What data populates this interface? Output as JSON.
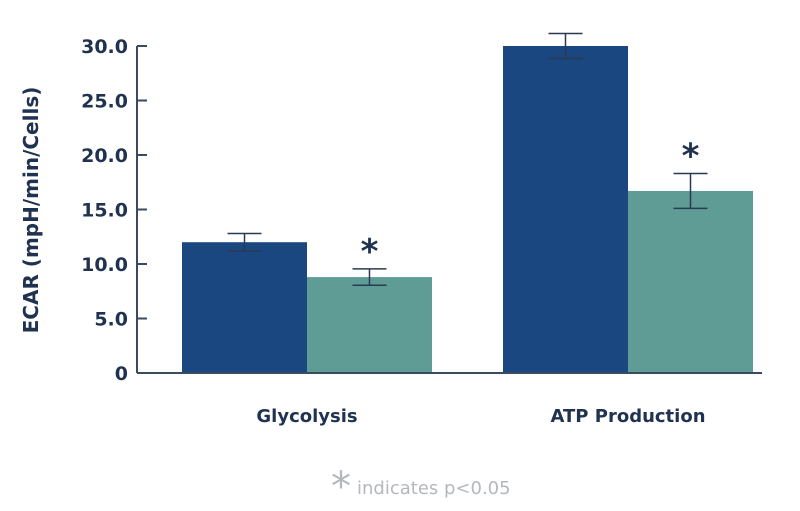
{
  "chart_data": {
    "type": "bar",
    "title": "",
    "xlabel": "",
    "ylabel": "ECAR (mpH/min/Cells)",
    "ylim": [
      0,
      30
    ],
    "yticks": [
      0,
      5,
      10,
      15,
      20,
      25,
      30
    ],
    "ytick_labels": [
      "0",
      "5.0",
      "10.0",
      "15.0",
      "20.0",
      "25.0",
      "30.0"
    ],
    "categories": [
      "Glycolysis",
      "ATP Production"
    ],
    "series": [
      {
        "values": [
          12.0,
          30.0
        ],
        "errors": [
          0.8,
          1.15
        ],
        "color": "#1b4781",
        "significant": [
          false,
          false
        ]
      },
      {
        "values": [
          8.8,
          16.7
        ],
        "errors": [
          0.75,
          1.6
        ],
        "color": "#5f9c96",
        "significant": [
          true,
          true
        ]
      }
    ],
    "significance_marker": "*",
    "grid": false,
    "legend": "none",
    "footnote": {
      "marker": "*",
      "text": "indicates p<0.05"
    },
    "text_color": "#1f3250",
    "axis_color": "#3a4a60",
    "footnote_color": "#b4b8bd"
  }
}
